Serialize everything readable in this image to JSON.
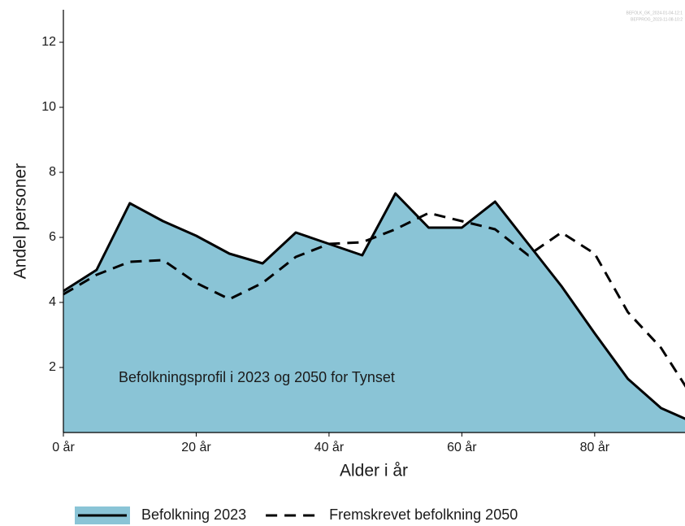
{
  "chart_data": {
    "type": "line",
    "annotation": "Befolkningsprofil i 2023 og 2050 for Tynset",
    "stamps": [
      "BEFOLK_GK_2024-01-04-12:1",
      "BEFPROG_2023-11-08-10:2"
    ],
    "x_label": "Alder i år",
    "y_label": "Andel personer",
    "x": [
      0,
      5,
      10,
      15,
      20,
      25,
      30,
      35,
      40,
      45,
      50,
      55,
      60,
      65,
      70,
      75,
      80,
      85,
      90,
      95
    ],
    "series": [
      {
        "name": "Befolkning 2023",
        "color": "#000000",
        "fill": "#8ac4d6",
        "dash": false,
        "values": [
          4.35,
          5.0,
          7.05,
          6.5,
          6.05,
          5.5,
          5.2,
          6.15,
          5.8,
          5.45,
          7.35,
          6.3,
          6.3,
          7.1,
          5.8,
          4.5,
          3.05,
          1.65,
          0.75,
          0.3
        ]
      },
      {
        "name": "Fremskrevet befolkning 2050",
        "color": "#000000",
        "dash": true,
        "values": [
          4.25,
          4.85,
          5.25,
          5.3,
          4.6,
          4.1,
          4.6,
          5.4,
          5.8,
          5.85,
          6.25,
          6.75,
          6.5,
          6.25,
          5.45,
          6.15,
          5.5,
          3.7,
          2.6,
          1.0
        ]
      }
    ],
    "xlim": [
      0,
      93.6
    ],
    "ylim": [
      0,
      13
    ],
    "xticks": [
      {
        "value": 0,
        "label": "0 år"
      },
      {
        "value": 20,
        "label": "20 år"
      },
      {
        "value": 40,
        "label": "40 år"
      },
      {
        "value": 60,
        "label": "60 år"
      },
      {
        "value": 80,
        "label": "80 år"
      }
    ],
    "yticks": [
      2,
      4,
      6,
      8,
      10,
      12
    ],
    "legend": "bottom"
  }
}
